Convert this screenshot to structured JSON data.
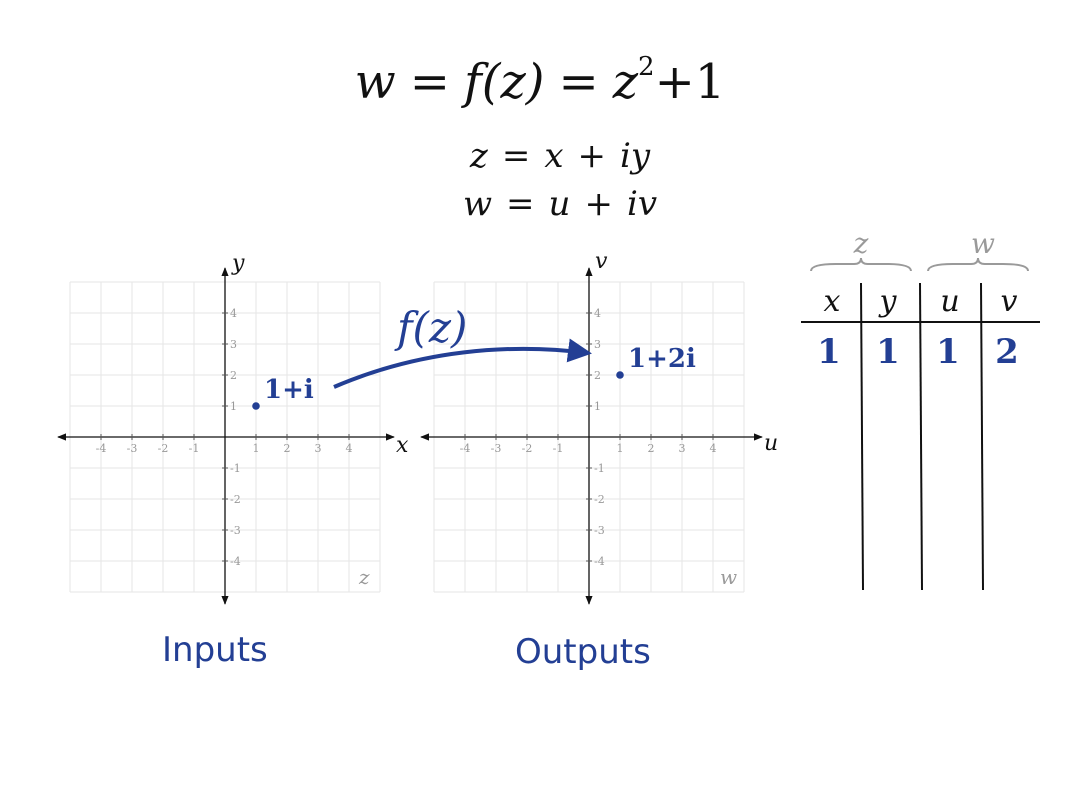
{
  "equations": {
    "main": {
      "lhs": "w",
      "eq": "=",
      "fz": "f(z)",
      "eq2": "=",
      "zvar": "z",
      "exp": "2",
      "tail": "+1"
    },
    "z_def": {
      "lhs": "z",
      "eq": "=",
      "a": "x",
      "plus": "+",
      "b": "iy"
    },
    "w_def": {
      "lhs": "w",
      "eq": "=",
      "a": "u",
      "plus": "+",
      "b": "iv"
    }
  },
  "input_plane": {
    "x_axis_label": "x",
    "y_axis_label": "y",
    "corner_label": "z",
    "ticks": [
      "-4",
      "-3",
      "-2",
      "-1",
      "1",
      "2",
      "3",
      "4"
    ],
    "point": {
      "re": 1,
      "im": 1,
      "label": "1+i"
    }
  },
  "output_plane": {
    "x_axis_label": "u",
    "y_axis_label": "v",
    "corner_label": "w",
    "ticks": [
      "-4",
      "-3",
      "-2",
      "-1",
      "1",
      "2",
      "3",
      "4"
    ],
    "point": {
      "re": 1,
      "im": 2,
      "label": "1+2i"
    }
  },
  "mapping_arrow": {
    "label": "f(z)"
  },
  "table": {
    "group_labels": [
      "z",
      "w"
    ],
    "headers": [
      "x",
      "y",
      "u",
      "v"
    ],
    "rows": [
      [
        "1",
        "1",
        "1",
        "2"
      ]
    ]
  },
  "captions": {
    "inputs": "Inputs",
    "outputs": "Outputs"
  },
  "colors": {
    "accent": "#233f94",
    "grid": "#e6e6e6",
    "tick_text": "#999999",
    "ink": "#111111",
    "muted": "#9a9a9a"
  }
}
